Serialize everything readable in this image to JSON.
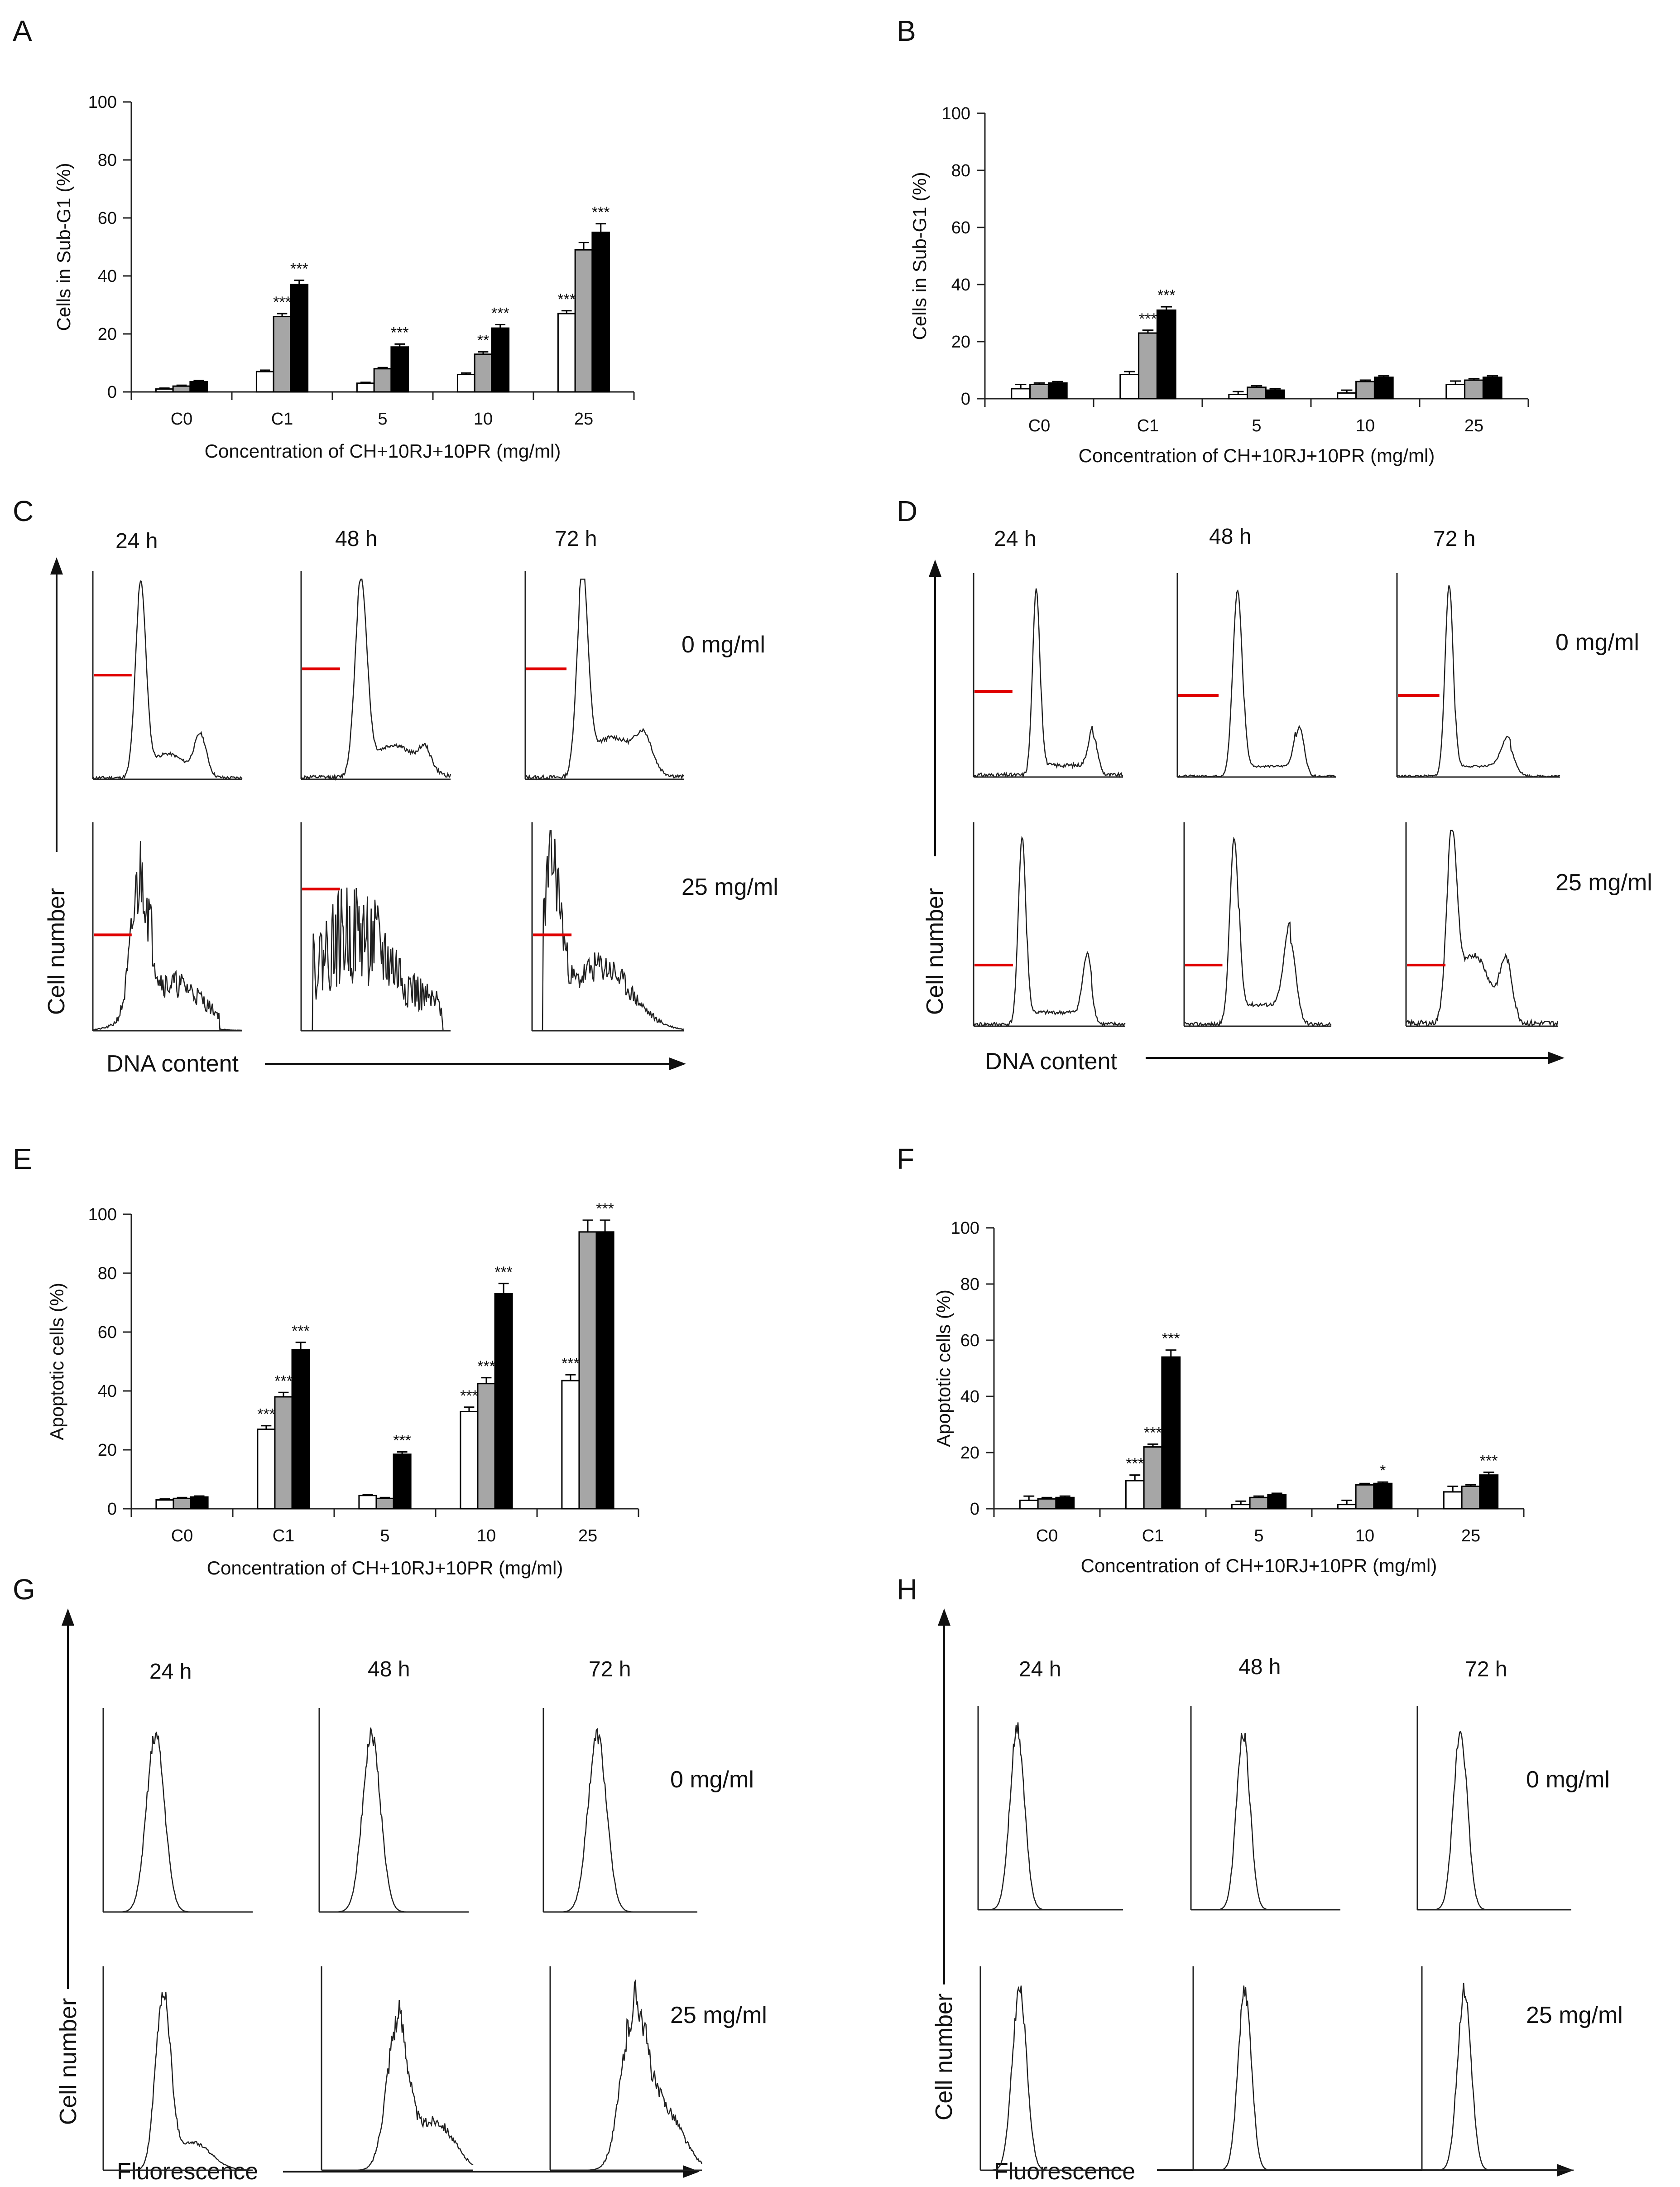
{
  "panels": {
    "A": {
      "label": "A"
    },
    "B": {
      "label": "B"
    },
    "C": {
      "label": "C",
      "times": [
        "24 h",
        "48 h",
        "72 h"
      ],
      "doses": [
        "0 mg/ml",
        "25 mg/ml"
      ],
      "ylabel": "Cell number",
      "xlabel": "DNA content"
    },
    "D": {
      "label": "D",
      "times": [
        "24 h",
        "48 h",
        "72 h"
      ],
      "doses": [
        "0 mg/ml",
        "25 mg/ml"
      ],
      "ylabel": "Cell number",
      "xlabel": "DNA content"
    },
    "E": {
      "label": "E"
    },
    "F": {
      "label": "F"
    },
    "G": {
      "label": "G",
      "times": [
        "24 h",
        "48 h",
        "72 h"
      ],
      "doses": [
        "0 mg/ml",
        "25 mg/ml"
      ],
      "ylabel": "Cell number",
      "xlabel": "Fluorescence"
    },
    "H": {
      "label": "H",
      "times": [
        "24 h",
        "48 h",
        "72 h"
      ],
      "doses": [
        "0 mg/ml",
        "25 mg/ml"
      ],
      "ylabel": "Cell number",
      "xlabel": "Fluorescence"
    }
  },
  "colors": {
    "series": [
      "#ffffff",
      "#a6a6a6",
      "#000000"
    ],
    "gate": "#e00000",
    "trace": "#222222"
  },
  "chart_data": [
    {
      "panel": "A",
      "type": "bar",
      "categories": [
        "C0",
        "C1",
        "5",
        "10",
        "25"
      ],
      "xlabel": "Concentration of CH+10RJ+10PR (mg/ml)",
      "ylabel": "Cells in Sub-G1 (%)",
      "ylim": [
        0,
        100
      ],
      "yticks": [
        "0",
        "20",
        "40",
        "60",
        "80",
        "100"
      ],
      "series": [
        {
          "name": "24 h",
          "values": [
            1,
            7,
            3,
            6,
            27
          ],
          "errors": [
            0.3,
            0.5,
            0.3,
            0.5,
            1
          ],
          "sig": [
            "",
            "",
            "",
            "",
            "***"
          ]
        },
        {
          "name": "48 h",
          "values": [
            2,
            26,
            8,
            13,
            49
          ],
          "errors": [
            0.3,
            1,
            0.4,
            0.8,
            2.5
          ],
          "sig": [
            "",
            "***",
            "",
            "**",
            ""
          ]
        },
        {
          "name": "72 h",
          "values": [
            3.5,
            37,
            15.5,
            22,
            55
          ],
          "errors": [
            0.4,
            1.5,
            1,
            1.2,
            3
          ],
          "sig": [
            "",
            "***",
            "***",
            "***",
            "***"
          ]
        }
      ]
    },
    {
      "panel": "B",
      "type": "bar",
      "categories": [
        "C0",
        "C1",
        "5",
        "10",
        "25"
      ],
      "xlabel": "Concentration of CH+10RJ+10PR (mg/ml)",
      "ylabel": "Cells in Sub-G1 (%)",
      "ylim": [
        0,
        100
      ],
      "yticks": [
        "0",
        "20",
        "40",
        "60",
        "80",
        "100"
      ],
      "series": [
        {
          "name": "24 h",
          "values": [
            3.5,
            8.5,
            1.5,
            2,
            5
          ],
          "errors": [
            1.5,
            1,
            1,
            1,
            1.2
          ],
          "sig": [
            "",
            "",
            "",
            "",
            ""
          ]
        },
        {
          "name": "48 h",
          "values": [
            5,
            23,
            4,
            6,
            6.5
          ],
          "errors": [
            0.5,
            1,
            0.5,
            0.5,
            0.5
          ],
          "sig": [
            "",
            "***",
            "",
            "",
            ""
          ]
        },
        {
          "name": "72 h",
          "values": [
            5.5,
            31,
            3,
            7.5,
            7.5
          ],
          "errors": [
            0.5,
            1.2,
            0.5,
            0.5,
            0.5
          ],
          "sig": [
            "",
            "***",
            "",
            "",
            ""
          ]
        }
      ]
    },
    {
      "panel": "E",
      "type": "bar",
      "categories": [
        "C0",
        "C1",
        "5",
        "10",
        "25"
      ],
      "xlabel": "Concentration of CH+10RJ+10PR (mg/ml)",
      "ylabel": "Apoptotic cells (%)",
      "ylim": [
        0,
        100
      ],
      "yticks": [
        "0",
        "20",
        "40",
        "60",
        "80",
        "100"
      ],
      "series": [
        {
          "name": "24 h",
          "values": [
            3,
            27,
            4.5,
            33,
            43.5
          ],
          "errors": [
            0.3,
            1.2,
            0.3,
            1.5,
            2
          ],
          "sig": [
            "",
            "***",
            "",
            "***",
            "***"
          ]
        },
        {
          "name": "48 h",
          "values": [
            3.5,
            38,
            3.5,
            42.5,
            94
          ],
          "errors": [
            0.3,
            1.5,
            0.3,
            2,
            4
          ],
          "sig": [
            "",
            "***",
            "",
            "***",
            ""
          ]
        },
        {
          "name": "72 h",
          "values": [
            4,
            54,
            18.5,
            73,
            94
          ],
          "errors": [
            0.3,
            2.5,
            0.8,
            3.5,
            4
          ],
          "sig": [
            "",
            "***",
            "***",
            "***",
            "***"
          ]
        }
      ]
    },
    {
      "panel": "F",
      "type": "bar",
      "categories": [
        "C0",
        "C1",
        "5",
        "10",
        "25"
      ],
      "xlabel": "Concentration of CH+10RJ+10PR (mg/ml)",
      "ylabel": "Apoptotic cells (%)",
      "ylim": [
        0,
        100
      ],
      "yticks": [
        "0",
        "20",
        "40",
        "60",
        "80",
        "100"
      ],
      "series": [
        {
          "name": "24 h",
          "values": [
            3,
            10,
            1.5,
            1.5,
            6
          ],
          "errors": [
            1.5,
            2,
            1.2,
            1.5,
            2
          ],
          "sig": [
            "",
            "***",
            "",
            "",
            ""
          ]
        },
        {
          "name": "48 h",
          "values": [
            3.5,
            22,
            4,
            8.5,
            8
          ],
          "errors": [
            0.5,
            1,
            0.5,
            0.5,
            0.5
          ],
          "sig": [
            "",
            "***",
            "",
            "",
            ""
          ]
        },
        {
          "name": "72 h",
          "values": [
            4,
            54,
            5,
            9,
            12
          ],
          "errors": [
            0.5,
            2.5,
            0.5,
            0.5,
            1
          ],
          "sig": [
            "",
            "***",
            "",
            "*",
            "***"
          ]
        }
      ]
    }
  ]
}
